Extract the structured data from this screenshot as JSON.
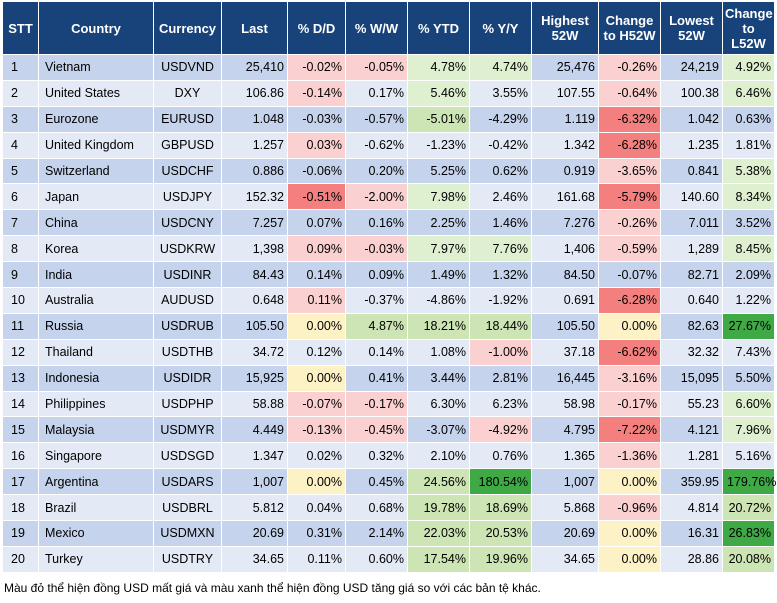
{
  "colors": {
    "header_bg": "#17427a",
    "row_odd": "#c5d3ec",
    "row_even": "#e3eaf6",
    "neg_strong": "#f3807e",
    "neg_mid": "#f8a9a9",
    "neg_light": "#fbd0d0",
    "neutral": "#fdf1c6",
    "pos_light": "#def0d0",
    "pos_mid": "#cde5b5",
    "pos_strong": "#a7d58a",
    "pos_max": "#3fa946"
  },
  "headers": [
    "STT",
    "Country",
    "Currency",
    "Last",
    "% D/D",
    "% W/W",
    "% YTD",
    "% Y/Y",
    "Highest 52W",
    "Change to H52W",
    "Lowest 52W",
    "Change to L52W"
  ],
  "rows": [
    [
      "1",
      "Vietnam",
      "USDVND",
      "25,410",
      "-0.02%",
      "-0.05%",
      "4.78%",
      "4.74%",
      "25,476",
      "-0.26%",
      "24,219",
      "4.92%"
    ],
    [
      "2",
      "United States",
      "DXY",
      "106.86",
      "-0.14%",
      "0.17%",
      "5.46%",
      "3.55%",
      "107.55",
      "-0.64%",
      "100.38",
      "6.46%"
    ],
    [
      "3",
      "Eurozone",
      "EURUSD",
      "1.048",
      "-0.03%",
      "-0.57%",
      "-5.01%",
      "-4.29%",
      "1.119",
      "-6.32%",
      "1.042",
      "0.63%"
    ],
    [
      "4",
      "United Kingdom",
      "GBPUSD",
      "1.257",
      "0.03%",
      "-0.62%",
      "-1.23%",
      "-0.42%",
      "1.342",
      "-6.28%",
      "1.235",
      "1.81%"
    ],
    [
      "5",
      "Switzerland",
      "USDCHF",
      "0.886",
      "-0.06%",
      "0.20%",
      "5.25%",
      "0.62%",
      "0.919",
      "-3.65%",
      "0.841",
      "5.38%"
    ],
    [
      "6",
      "Japan",
      "USDJPY",
      "152.32",
      "-0.51%",
      "-2.00%",
      "7.98%",
      "2.46%",
      "161.68",
      "-5.79%",
      "140.60",
      "8.34%"
    ],
    [
      "7",
      "China",
      "USDCNY",
      "7.257",
      "0.07%",
      "0.16%",
      "2.25%",
      "1.46%",
      "7.276",
      "-0.26%",
      "7.011",
      "3.52%"
    ],
    [
      "8",
      "Korea",
      "USDKRW",
      "1,398",
      "0.09%",
      "-0.03%",
      "7.97%",
      "7.76%",
      "1,406",
      "-0.59%",
      "1,289",
      "8.45%"
    ],
    [
      "9",
      "India",
      "USDINR",
      "84.43",
      "0.14%",
      "0.09%",
      "1.49%",
      "1.32%",
      "84.50",
      "-0.07%",
      "82.71",
      "2.09%"
    ],
    [
      "10",
      "Australia",
      "AUDUSD",
      "0.648",
      "0.11%",
      "-0.37%",
      "-4.86%",
      "-1.92%",
      "0.691",
      "-6.28%",
      "0.640",
      "1.22%"
    ],
    [
      "11",
      "Russia",
      "USDRUB",
      "105.50",
      "0.00%",
      "4.87%",
      "18.21%",
      "18.44%",
      "105.50",
      "0.00%",
      "82.63",
      "27.67%"
    ],
    [
      "12",
      "Thailand",
      "USDTHB",
      "34.72",
      "0.12%",
      "0.14%",
      "1.08%",
      "-1.00%",
      "37.18",
      "-6.62%",
      "32.32",
      "7.43%"
    ],
    [
      "13",
      "Indonesia",
      "USDIDR",
      "15,925",
      "0.00%",
      "0.41%",
      "3.44%",
      "2.81%",
      "16,445",
      "-3.16%",
      "15,095",
      "5.50%"
    ],
    [
      "14",
      "Philippines",
      "USDPHP",
      "58.88",
      "-0.07%",
      "-0.17%",
      "6.30%",
      "6.23%",
      "58.98",
      "-0.17%",
      "55.23",
      "6.60%"
    ],
    [
      "15",
      "Malaysia",
      "USDMYR",
      "4.449",
      "-0.13%",
      "-0.45%",
      "-3.07%",
      "-4.92%",
      "4.795",
      "-7.22%",
      "4.121",
      "7.96%"
    ],
    [
      "16",
      "Singapore",
      "USDSGD",
      "1.347",
      "0.02%",
      "0.32%",
      "2.10%",
      "0.76%",
      "1.365",
      "-1.36%",
      "1.281",
      "5.16%"
    ],
    [
      "17",
      "Argentina",
      "USDARS",
      "1,007",
      "0.00%",
      "0.45%",
      "24.56%",
      "180.54%",
      "1,007",
      "0.00%",
      "359.95",
      "179.76%"
    ],
    [
      "18",
      "Brazil",
      "USDBRL",
      "5.812",
      "0.04%",
      "0.68%",
      "19.78%",
      "18.69%",
      "5.868",
      "-0.96%",
      "4.814",
      "20.72%"
    ],
    [
      "19",
      "Mexico",
      "USDMXN",
      "20.69",
      "0.31%",
      "2.14%",
      "22.03%",
      "20.53%",
      "20.69",
      "0.00%",
      "16.31",
      "26.83%"
    ],
    [
      "20",
      "Turkey",
      "USDTRY",
      "34.65",
      "0.11%",
      "0.60%",
      "17.54%",
      "19.96%",
      "34.65",
      "0.00%",
      "28.86",
      "20.08%"
    ]
  ],
  "cell_colors": {
    "0_4": "neg_light",
    "0_5": "neg_light",
    "0_6": "pos_light",
    "0_7": "pos_light",
    "0_9": "neg_light",
    "0_11": "pos_light",
    "1_4": "neg_light",
    "1_6": "pos_light",
    "1_9": "neg_light",
    "1_11": "pos_light",
    "2_6": "pos_mid",
    "2_9": "neg_strong",
    "3_4": "neg_light",
    "3_9": "neg_strong",
    "4_9": "neg_light",
    "4_11": "pos_light",
    "5_4": "neg_strong",
    "5_5": "neg_light",
    "5_6": "pos_light",
    "5_9": "neg_strong",
    "5_11": "pos_light",
    "6_9": "neg_light",
    "7_4": "neg_light",
    "7_5": "neg_light",
    "7_6": "pos_light",
    "7_7": "pos_light",
    "7_9": "neg_light",
    "7_11": "pos_light",
    "9_4": "neg_light",
    "9_9": "neg_strong",
    "10_4": "neutral",
    "10_5": "pos_mid",
    "10_6": "pos_mid",
    "10_7": "pos_mid",
    "10_9": "neutral",
    "10_11": "pos_max",
    "11_7": "neg_light",
    "11_9": "neg_strong",
    "12_4": "neutral",
    "12_9": "neg_light",
    "13_4": "neg_light",
    "13_5": "neg_light",
    "13_9": "neg_light",
    "13_11": "pos_light",
    "14_4": "neg_light",
    "14_5": "neg_light",
    "14_7": "neg_light",
    "14_9": "neg_strong",
    "14_11": "pos_light",
    "15_9": "neg_light",
    "16_4": "neutral",
    "16_6": "pos_mid",
    "16_7": "pos_max",
    "16_9": "neutral",
    "16_11": "pos_max",
    "17_6": "pos_mid",
    "17_7": "pos_mid",
    "17_9": "neg_light",
    "17_11": "pos_mid",
    "18_6": "pos_mid",
    "18_7": "pos_mid",
    "18_9": "neutral",
    "18_11": "pos_max",
    "19_6": "pos_mid",
    "19_7": "pos_mid",
    "19_9": "neutral",
    "19_11": "pos_mid"
  },
  "footnote": "Màu đỏ thể hiện đồng USD mất giá và màu xanh thể hiện đồng USD tăng giá so với các bản tệ khác."
}
